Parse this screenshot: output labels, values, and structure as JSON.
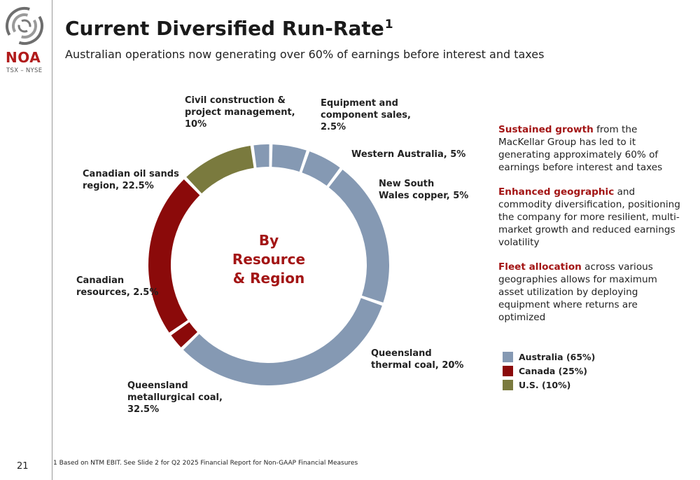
{
  "sidebar": {
    "logo_text": "NOA",
    "ticker": "TSX – NYSE",
    "page_number": "21"
  },
  "header": {
    "title": "Current Diversified Run-Rate",
    "title_superscript": "1",
    "subtitle": "Australian operations now generating over 60% of earnings before interest and taxes"
  },
  "chart_data": {
    "type": "pie",
    "center_label": [
      "By",
      "Resource",
      "& Region"
    ],
    "slices": [
      {
        "label": [
          "Equipment and",
          "component sales,",
          "2.5%"
        ],
        "value": 2.5,
        "group": "Australia"
      },
      {
        "label": [
          "Western Australia, 5%"
        ],
        "value": 5,
        "group": "Australia"
      },
      {
        "label": [
          "New South",
          "Wales copper, 5%"
        ],
        "value": 5,
        "group": "Australia"
      },
      {
        "label": [
          "Queensland",
          "thermal coal, 20%"
        ],
        "value": 20,
        "group": "Australia"
      },
      {
        "label": [
          "Queensland",
          "metallurgical coal,",
          "32.5%"
        ],
        "value": 32.5,
        "group": "Australia"
      },
      {
        "label": [
          "Canadian",
          "resources, 2.5%"
        ],
        "value": 2.5,
        "group": "Canada"
      },
      {
        "label": [
          "Canadian oil sands",
          "region, 22.5%"
        ],
        "value": 22.5,
        "group": "Canada"
      },
      {
        "label": [
          "Civil construction &",
          "project management,",
          "10%"
        ],
        "value": 10,
        "group": "U.S."
      }
    ],
    "legend": [
      {
        "name": "Australia (65%)",
        "color": "#8599b3"
      },
      {
        "name": "Canada (25%)",
        "color": "#8b0a0a"
      },
      {
        "name": "U.S. (10%)",
        "color": "#7a7a3e"
      }
    ],
    "group_colors": {
      "Australia": "#8599b3",
      "Canada": "#8b0a0a",
      "U.S.": "#7a7a3e"
    }
  },
  "bullets": [
    {
      "lead": "Sustained growth",
      "text": " from the MacKellar Group has led to it generating approximately 60% of earnings before interest and taxes"
    },
    {
      "lead": "Enhanced geographic",
      "text": " and commodity diversification, positioning the company for more resilient, multi-market growth and reduced earnings volatility"
    },
    {
      "lead": "Fleet allocation",
      "text": " across various geographies allows for maximum asset utilization by deploying equipment where returns are optimized"
    }
  ],
  "footnote": "1 Based on NTM EBIT. See Slide 2 for Q2 2025 Financial Report for Non-GAAP Financial Measures"
}
